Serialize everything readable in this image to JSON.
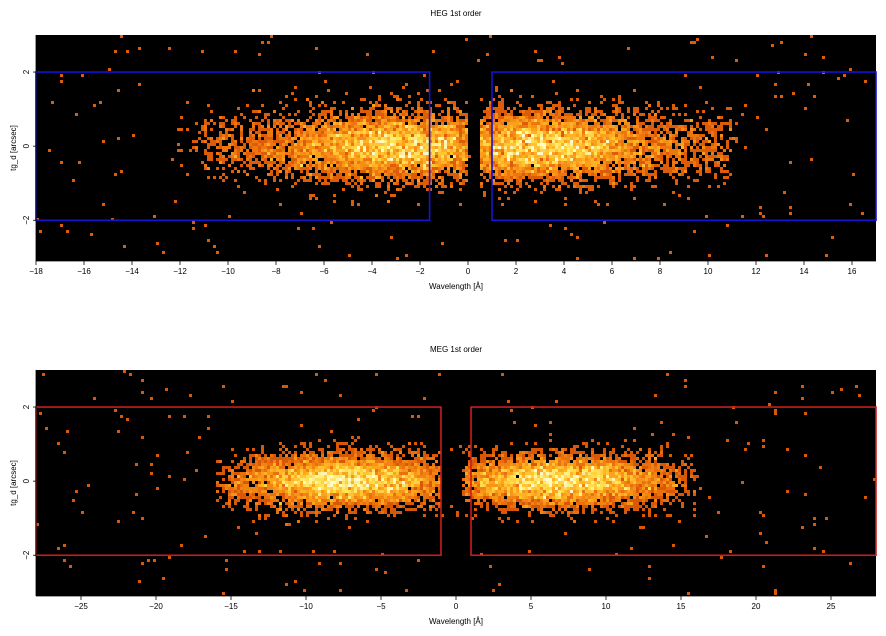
{
  "chart_data": [
    {
      "type": "heatmap",
      "title": "HEG 1st order",
      "xlabel": "Wavelength [Å]",
      "ylabel": "tg_d [arcsec]",
      "xlim": [
        -18,
        17
      ],
      "ylim": [
        -3.1,
        3.0
      ],
      "xticks": [
        -18,
        -16,
        -14,
        -12,
        -10,
        -8,
        -6,
        -4,
        -2,
        0,
        2,
        4,
        6,
        8,
        10,
        12,
        14,
        16
      ],
      "yticks": [
        -2,
        0,
        2
      ],
      "background": "#000000",
      "region_color": "#1414d2",
      "regions": [
        {
          "x0": -18,
          "x1": -1.6,
          "y0": -2,
          "y1": 2
        },
        {
          "x0": 1.0,
          "x1": 17,
          "y0": -2,
          "y1": 2
        }
      ],
      "clusters": [
        {
          "xmin": -11,
          "xmax": -1.0,
          "peak": -2.8,
          "sigma_y": 0.45,
          "strength": 1.0
        },
        {
          "xmin": 1.5,
          "xmax": 11,
          "peak": 2.8,
          "sigma_y": 0.45,
          "strength": 1.0
        }
      ]
    },
    {
      "type": "heatmap",
      "title": "MEG 1st order",
      "xlabel": "Wavelength [Å]",
      "ylabel": "tg_d [arcsec]",
      "xlim": [
        -28,
        28
      ],
      "ylim": [
        -3.1,
        3.0
      ],
      "xticks": [
        -25,
        -20,
        -15,
        -10,
        -5,
        0,
        5,
        10,
        15,
        20,
        25
      ],
      "yticks": [
        -2,
        0,
        2
      ],
      "background": "#000000",
      "region_color": "#c81e1e",
      "regions": [
        {
          "x0": -28,
          "x1": -1.0,
          "y0": -2,
          "y1": 2
        },
        {
          "x0": 1.0,
          "x1": 28,
          "y0": -2,
          "y1": 2
        }
      ],
      "clusters": [
        {
          "xmin": -15,
          "xmax": -2.0,
          "peak": -7.5,
          "sigma_y": 0.35,
          "strength": 1.0
        },
        {
          "xmin": 1.5,
          "xmax": 15,
          "peak": 7.0,
          "sigma_y": 0.35,
          "strength": 1.0
        }
      ]
    }
  ]
}
